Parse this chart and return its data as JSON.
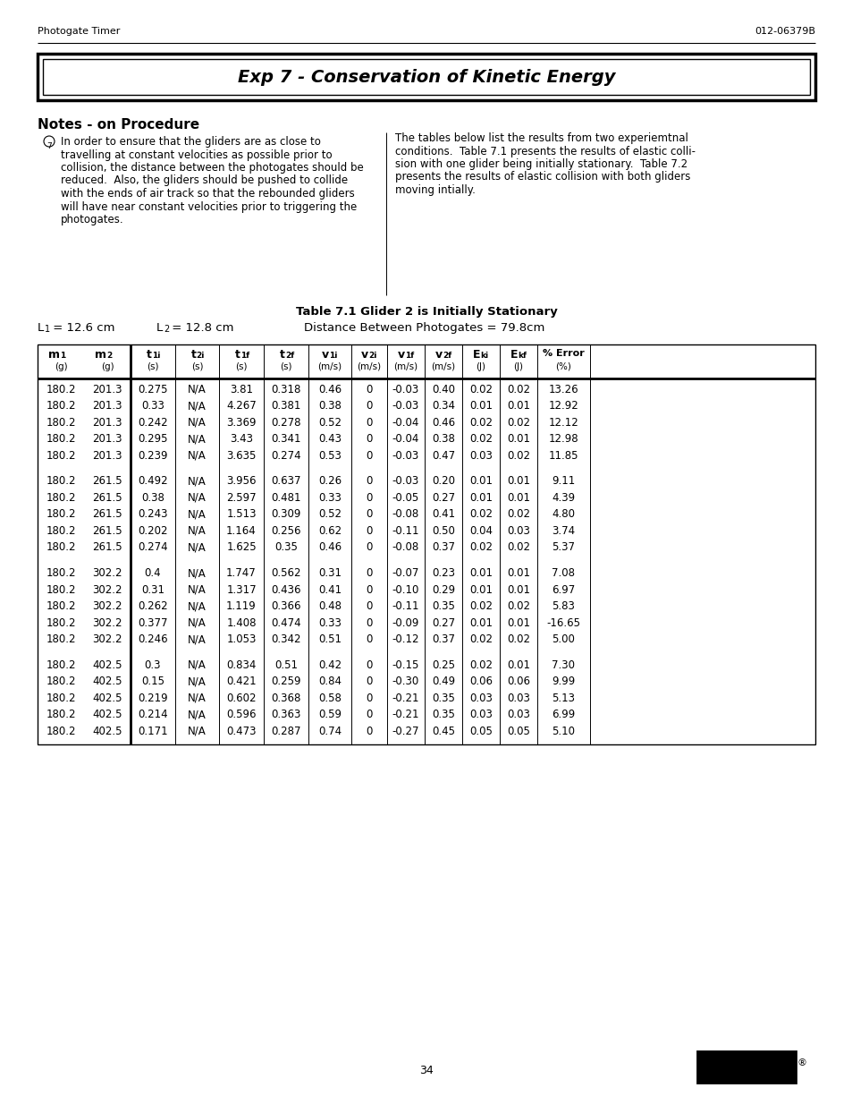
{
  "header_left": "Photogate Timer",
  "header_right": "012-06379B",
  "title": "Exp 7 - Conservation of Kinetic Energy",
  "section_title": "Notes - on Procedure",
  "note_text": "In order to ensure that the gliders are as close to\ntravelling at constant velocities as possible prior to\ncollision, the distance between the photogates should be\nreduced.  Also, the gliders should be pushed to collide\nwith the ends of air track so that the rebounded gliders\nwill have near constant velocities prior to triggering the\nphotogates.",
  "right_text_lines": [
    "The tables below list the results from two experiemtnal",
    "conditions.  Table 7.1 presents the results of elastic colli-",
    "sion with one glider being initially stationary.  Table 7.2",
    "presents the results of elastic collision with both gliders",
    "moving intially."
  ],
  "table_title": "Table 7.1 Glider 2 is Initially Stationary",
  "L1_val": "L₁ = 12.6 cm",
  "L2_val": "L₂ = 12.8 cm",
  "distance_label": "Distance Between Photogates = 79.8cm",
  "table_data": [
    [
      "180.2",
      "201.3",
      "0.275",
      "N/A",
      "3.81",
      "0.318",
      "0.46",
      "0",
      "-0.03",
      "0.40",
      "0.02",
      "0.02",
      "13.26"
    ],
    [
      "180.2",
      "201.3",
      "0.33",
      "N/A",
      "4.267",
      "0.381",
      "0.38",
      "0",
      "-0.03",
      "0.34",
      "0.01",
      "0.01",
      "12.92"
    ],
    [
      "180.2",
      "201.3",
      "0.242",
      "N/A",
      "3.369",
      "0.278",
      "0.52",
      "0",
      "-0.04",
      "0.46",
      "0.02",
      "0.02",
      "12.12"
    ],
    [
      "180.2",
      "201.3",
      "0.295",
      "N/A",
      "3.43",
      "0.341",
      "0.43",
      "0",
      "-0.04",
      "0.38",
      "0.02",
      "0.01",
      "12.98"
    ],
    [
      "180.2",
      "201.3",
      "0.239",
      "N/A",
      "3.635",
      "0.274",
      "0.53",
      "0",
      "-0.03",
      "0.47",
      "0.03",
      "0.02",
      "11.85"
    ],
    [
      "180.2",
      "261.5",
      "0.492",
      "N/A",
      "3.956",
      "0.637",
      "0.26",
      "0",
      "-0.03",
      "0.20",
      "0.01",
      "0.01",
      "9.11"
    ],
    [
      "180.2",
      "261.5",
      "0.38",
      "N/A",
      "2.597",
      "0.481",
      "0.33",
      "0",
      "-0.05",
      "0.27",
      "0.01",
      "0.01",
      "4.39"
    ],
    [
      "180.2",
      "261.5",
      "0.243",
      "N/A",
      "1.513",
      "0.309",
      "0.52",
      "0",
      "-0.08",
      "0.41",
      "0.02",
      "0.02",
      "4.80"
    ],
    [
      "180.2",
      "261.5",
      "0.202",
      "N/A",
      "1.164",
      "0.256",
      "0.62",
      "0",
      "-0.11",
      "0.50",
      "0.04",
      "0.03",
      "3.74"
    ],
    [
      "180.2",
      "261.5",
      "0.274",
      "N/A",
      "1.625",
      "0.35",
      "0.46",
      "0",
      "-0.08",
      "0.37",
      "0.02",
      "0.02",
      "5.37"
    ],
    [
      "180.2",
      "302.2",
      "0.4",
      "N/A",
      "1.747",
      "0.562",
      "0.31",
      "0",
      "-0.07",
      "0.23",
      "0.01",
      "0.01",
      "7.08"
    ],
    [
      "180.2",
      "302.2",
      "0.31",
      "N/A",
      "1.317",
      "0.436",
      "0.41",
      "0",
      "-0.10",
      "0.29",
      "0.01",
      "0.01",
      "6.97"
    ],
    [
      "180.2",
      "302.2",
      "0.262",
      "N/A",
      "1.119",
      "0.366",
      "0.48",
      "0",
      "-0.11",
      "0.35",
      "0.02",
      "0.02",
      "5.83"
    ],
    [
      "180.2",
      "302.2",
      "0.377",
      "N/A",
      "1.408",
      "0.474",
      "0.33",
      "0",
      "-0.09",
      "0.27",
      "0.01",
      "0.01",
      "-16.65"
    ],
    [
      "180.2",
      "302.2",
      "0.246",
      "N/A",
      "1.053",
      "0.342",
      "0.51",
      "0",
      "-0.12",
      "0.37",
      "0.02",
      "0.02",
      "5.00"
    ],
    [
      "180.2",
      "402.5",
      "0.3",
      "N/A",
      "0.834",
      "0.51",
      "0.42",
      "0",
      "-0.15",
      "0.25",
      "0.02",
      "0.01",
      "7.30"
    ],
    [
      "180.2",
      "402.5",
      "0.15",
      "N/A",
      "0.421",
      "0.259",
      "0.84",
      "0",
      "-0.30",
      "0.49",
      "0.06",
      "0.06",
      "9.99"
    ],
    [
      "180.2",
      "402.5",
      "0.219",
      "N/A",
      "0.602",
      "0.368",
      "0.58",
      "0",
      "-0.21",
      "0.35",
      "0.03",
      "0.03",
      "5.13"
    ],
    [
      "180.2",
      "402.5",
      "0.214",
      "N/A",
      "0.596",
      "0.363",
      "0.59",
      "0",
      "-0.21",
      "0.35",
      "0.03",
      "0.03",
      "6.99"
    ],
    [
      "180.2",
      "402.5",
      "0.171",
      "N/A",
      "0.473",
      "0.287",
      "0.74",
      "0",
      "-0.27",
      "0.45",
      "0.05",
      "0.05",
      "5.10"
    ]
  ],
  "group_sizes": [
    5,
    5,
    5,
    5
  ],
  "page_number": "34",
  "bg_color": "#ffffff"
}
